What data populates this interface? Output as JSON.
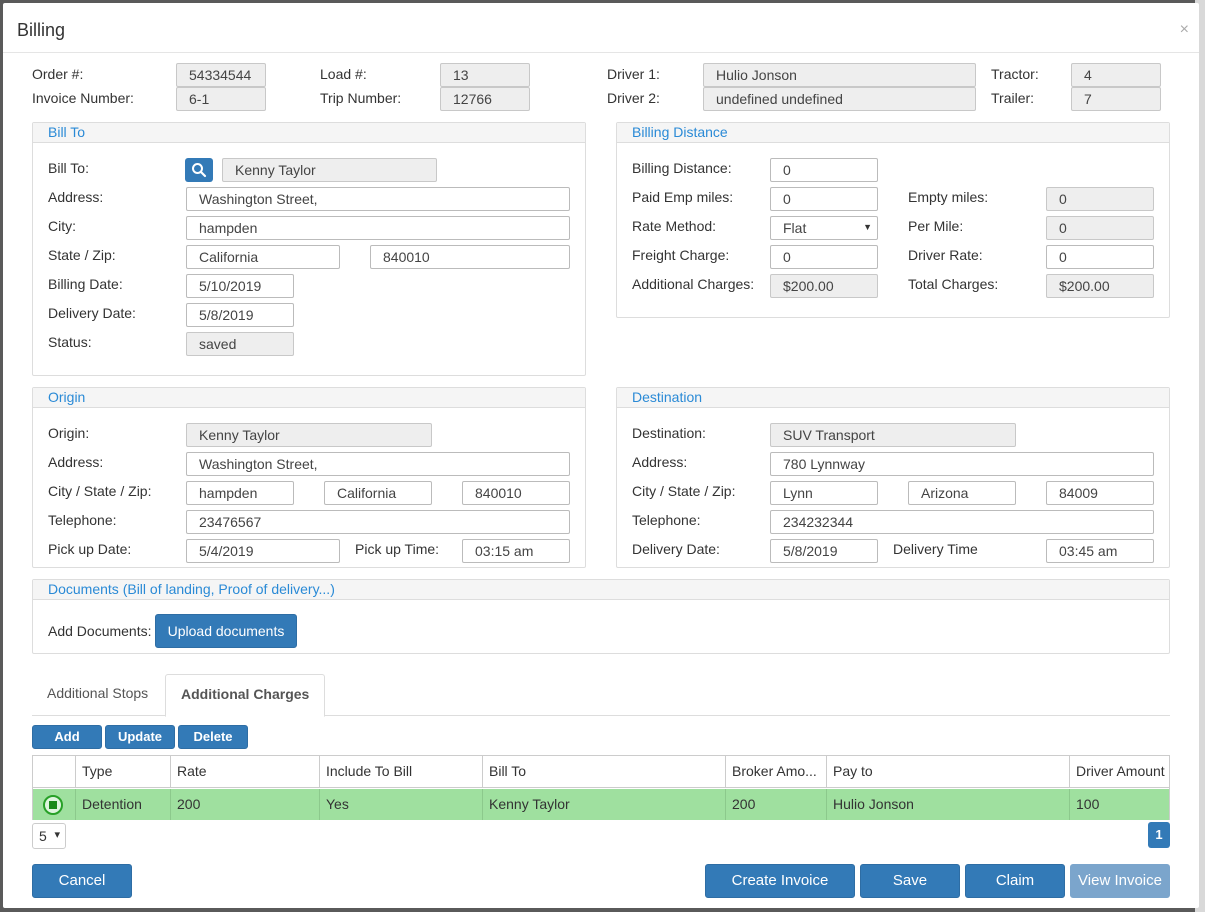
{
  "modal": {
    "title": "Billing",
    "close": "×"
  },
  "header": {
    "order_label": "Order #:",
    "order_value": "54334544",
    "invoice_label": "Invoice Number:",
    "invoice_value": "6-1",
    "load_label": "Load #:",
    "load_value": "13",
    "trip_label": "Trip Number:",
    "trip_value": "12766",
    "driver1_label": "Driver 1:",
    "driver1_value": "Hulio Jonson",
    "driver2_label": "Driver 2:",
    "driver2_value": "undefined undefined",
    "tractor_label": "Tractor:",
    "tractor_value": "4",
    "trailer_label": "Trailer:",
    "trailer_value": "7"
  },
  "bill_to": {
    "title": "Bill To",
    "bill_to_label": "Bill To:",
    "bill_to_value": "Kenny Taylor",
    "address_label": "Address:",
    "address_value": "Washington Street,",
    "city_label": "City:",
    "city_value": "hampden",
    "state_zip_label": "State / Zip:",
    "state_value": "California",
    "zip_value": "840010",
    "billing_date_label": "Billing Date:",
    "billing_date_value": "5/10/2019",
    "delivery_date_label": "Delivery Date:",
    "delivery_date_value": "5/8/2019",
    "status_label": "Status:",
    "status_value": "saved"
  },
  "billing_distance": {
    "title": "Billing Distance",
    "distance_label": "Billing Distance:",
    "distance_value": "0",
    "paid_emp_label": "Paid Emp miles:",
    "paid_emp_value": "0",
    "empty_label": "Empty miles:",
    "empty_value": "0",
    "rate_method_label": "Rate Method:",
    "rate_method_value": "Flat",
    "per_mile_label": "Per Mile:",
    "per_mile_value": "0",
    "freight_label": "Freight Charge:",
    "freight_value": "0",
    "driver_rate_label": "Driver Rate:",
    "driver_rate_value": "0",
    "additional_label": "Additional Charges:",
    "additional_value": "$200.00",
    "total_label": "Total Charges:",
    "total_value": "$200.00"
  },
  "origin": {
    "title": "Origin",
    "origin_label": "Origin:",
    "origin_value": "Kenny Taylor",
    "address_label": "Address:",
    "address_value": "Washington Street,",
    "csz_label": "City / State / Zip:",
    "city_value": "hampden",
    "state_value": "California",
    "zip_value": "840010",
    "phone_label": "Telephone:",
    "phone_value": "23476567",
    "pickup_date_label": "Pick up Date:",
    "pickup_date_value": "5/4/2019",
    "pickup_time_label": "Pick up Time:",
    "pickup_time_value": "03:15 am"
  },
  "destination": {
    "title": "Destination",
    "dest_label": "Destination:",
    "dest_value": "SUV Transport",
    "address_label": "Address:",
    "address_value": "780 Lynnway",
    "csz_label": "City / State / Zip:",
    "city_value": "Lynn",
    "state_value": "Arizona",
    "zip_value": "84009",
    "phone_label": "Telephone:",
    "phone_value": "234232344",
    "delivery_date_label": "Delivery Date:",
    "delivery_date_value": "5/8/2019",
    "delivery_time_label": "Delivery Time",
    "delivery_time_value": "03:45 am"
  },
  "documents": {
    "title": "Documents (Bill of landing, Proof of delivery...)",
    "add_label": "Add Documents:",
    "upload_button": "Upload documents"
  },
  "tabs": [
    {
      "label": "Additional Stops",
      "active": false
    },
    {
      "label": "Additional Charges",
      "active": true
    }
  ],
  "grid_toolbar": {
    "add": "Add",
    "update": "Update",
    "delete": "Delete"
  },
  "grid": {
    "columns": [
      "",
      "Type",
      "Rate",
      "Include To Bill",
      "Bill To",
      "Broker Amo...",
      "Pay to",
      "Driver Amount"
    ],
    "rows": [
      {
        "type": "Detention",
        "rate": "200",
        "include": "Yes",
        "bill_to": "Kenny Taylor",
        "broker": "200",
        "pay_to": "Hulio Jonson",
        "driver_amount": "100",
        "selected": true
      }
    ]
  },
  "pager": {
    "page_size": "5",
    "current_page": "1"
  },
  "footer": {
    "cancel": "Cancel",
    "create_invoice": "Create Invoice",
    "save": "Save",
    "claim": "Claim",
    "view_invoice": "View Invoice"
  },
  "colors": {
    "primary": "#337ab7",
    "panel_title": "#2a8ad6",
    "selected_row": "#9fe09f"
  }
}
